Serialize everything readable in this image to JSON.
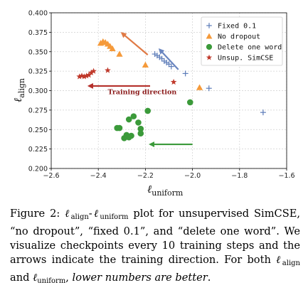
{
  "chart_data": {
    "type": "scatter",
    "xlim": [
      -2.6,
      -1.6
    ],
    "ylim": [
      0.2,
      0.4
    ],
    "xticks": [
      "−2.6",
      "−2.4",
      "−2.2",
      "−2.0",
      "−1.8",
      "−1.6"
    ],
    "xtick_values": [
      -2.6,
      -2.4,
      -2.2,
      -2.0,
      -1.8,
      -1.6
    ],
    "yticks": [
      "0.200",
      "0.225",
      "0.250",
      "0.275",
      "0.300",
      "0.325",
      "0.350",
      "0.375",
      "0.400"
    ],
    "ytick_values": [
      0.2,
      0.225,
      0.25,
      0.275,
      0.3,
      0.325,
      0.35,
      0.375,
      0.4
    ],
    "grid": true,
    "legend_position": "top-right",
    "xlabel_main": "ℓ",
    "xlabel_sub": "uniform",
    "ylabel_main": "ℓ",
    "ylabel_sub": "align",
    "series": [
      {
        "name": "Fixed 0.1",
        "marker": "plus",
        "color": "#5b7bb8",
        "points": [
          [
            -2.16,
            0.347
          ],
          [
            -2.15,
            0.345
          ],
          [
            -2.14,
            0.343
          ],
          [
            -2.13,
            0.341
          ],
          [
            -2.12,
            0.338
          ],
          [
            -2.11,
            0.336
          ],
          [
            -2.1,
            0.334
          ],
          [
            -2.09,
            0.331
          ],
          [
            -2.03,
            0.322
          ],
          [
            -1.93,
            0.303
          ],
          [
            -1.7,
            0.272
          ]
        ]
      },
      {
        "name": "No dropout",
        "marker": "triangle",
        "color": "#f59a3a",
        "points": [
          [
            -2.39,
            0.361
          ],
          [
            -2.38,
            0.363
          ],
          [
            -2.37,
            0.362
          ],
          [
            -2.36,
            0.36
          ],
          [
            -2.35,
            0.357
          ],
          [
            -2.34,
            0.354
          ],
          [
            -2.31,
            0.347
          ],
          [
            -2.2,
            0.333
          ],
          [
            -1.97,
            0.304
          ]
        ]
      },
      {
        "name": "Delete one word",
        "marker": "circle",
        "color": "#3b9a3a",
        "points": [
          [
            -2.19,
            0.274
          ],
          [
            -2.25,
            0.267
          ],
          [
            -2.27,
            0.263
          ],
          [
            -2.23,
            0.259
          ],
          [
            -2.22,
            0.251
          ],
          [
            -2.32,
            0.252
          ],
          [
            -2.31,
            0.252
          ],
          [
            -2.28,
            0.243
          ],
          [
            -2.26,
            0.242
          ],
          [
            -2.22,
            0.245
          ],
          [
            -2.27,
            0.24
          ],
          [
            -2.29,
            0.239
          ],
          [
            -2.01,
            0.285
          ]
        ]
      },
      {
        "name": "Unsup. SimCSE",
        "marker": "star",
        "color": "#c0392b",
        "points": [
          [
            -2.48,
            0.318
          ],
          [
            -2.47,
            0.319
          ],
          [
            -2.46,
            0.318
          ],
          [
            -2.45,
            0.319
          ],
          [
            -2.44,
            0.32
          ],
          [
            -2.43,
            0.323
          ],
          [
            -2.42,
            0.325
          ],
          [
            -2.36,
            0.326
          ],
          [
            -2.08,
            0.311
          ]
        ]
      }
    ],
    "arrows": [
      {
        "color": "#e07a45",
        "from": [
          -2.19,
          0.346
        ],
        "to": [
          -2.3,
          0.374
        ]
      },
      {
        "color": "#6a86c0",
        "from": [
          -2.06,
          0.327
        ],
        "to": [
          -2.14,
          0.353
        ]
      },
      {
        "color": "#b5302b",
        "from": [
          -2.18,
          0.306
        ],
        "to": [
          -2.44,
          0.306
        ]
      },
      {
        "color": "#3b9a3a",
        "from": [
          -2.0,
          0.231
        ],
        "to": [
          -2.18,
          0.231
        ]
      }
    ],
    "annotation": {
      "text": "Training direction",
      "x": -2.36,
      "y": 0.2955,
      "color": "#8b1a1a"
    }
  },
  "caption": {
    "figure_label": "Figure 2:",
    "l_symbol": "ℓ",
    "sub_align": "align",
    "sub_uniform": "uniform",
    "dash": "-",
    "part1": "plot for unsupervised SimCSE, “no dropout”, “fixed 0.1”, and “delete one word”. We visualize checkpoints every 10 training steps and the arrows indicate the training direction. For both",
    "and_word": "and",
    "comma": ",",
    "emphasis": "lower numbers are better",
    "period": "."
  }
}
